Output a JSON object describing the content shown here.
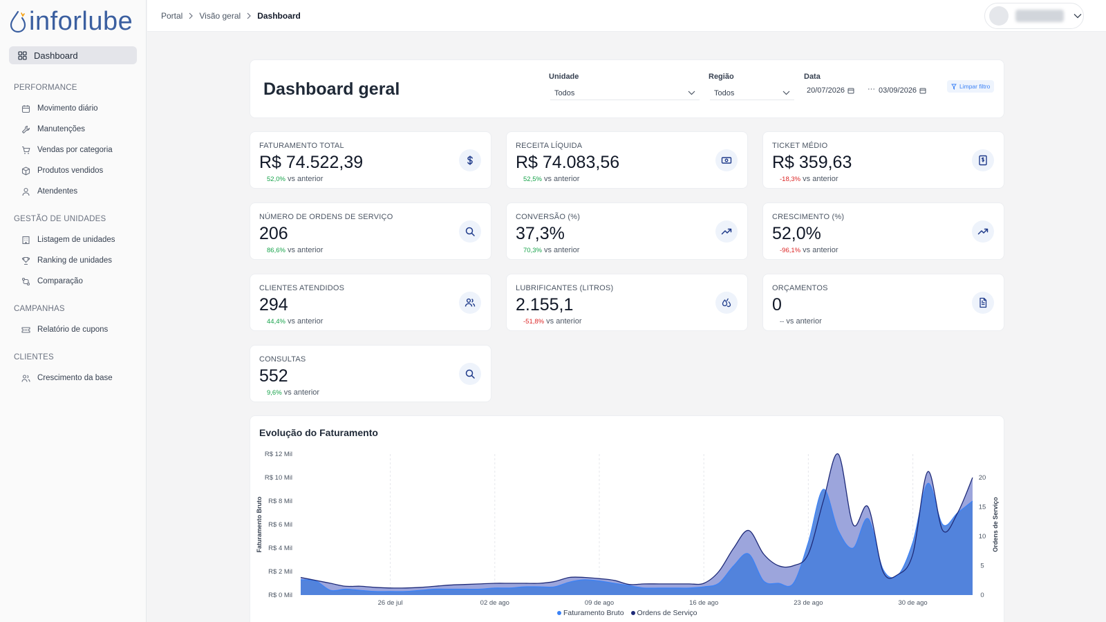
{
  "brand": {
    "name": "inforlube"
  },
  "sidebar": {
    "active": {
      "label": "Dashboard",
      "icon": "grid-icon"
    },
    "sections": [
      {
        "title": "PERFORMANCE",
        "items": [
          {
            "label": "Movimento diário",
            "icon": "calendar-icon"
          },
          {
            "label": "Manutenções",
            "icon": "wrench-icon"
          },
          {
            "label": "Vendas por categoria",
            "icon": "cart-icon"
          },
          {
            "label": "Produtos vendidos",
            "icon": "box-icon"
          },
          {
            "label": "Atendentes",
            "icon": "user-icon"
          }
        ]
      },
      {
        "title": "GESTÃO DE UNIDADES",
        "items": [
          {
            "label": "Listagem de unidades",
            "icon": "building-icon"
          },
          {
            "label": "Ranking de unidades",
            "icon": "trophy-icon"
          },
          {
            "label": "Comparação",
            "icon": "compare-icon"
          }
        ]
      },
      {
        "title": "CAMPANHAS",
        "items": [
          {
            "label": "Relatório de cupons",
            "icon": "ticket-icon"
          }
        ]
      },
      {
        "title": "CLIENTES",
        "items": [
          {
            "label": "Crescimento da base",
            "icon": "users-icon"
          }
        ]
      }
    ]
  },
  "breadcrumb": {
    "items": [
      "Portal",
      "Visão geral"
    ],
    "current": "Dashboard"
  },
  "header": {
    "title": "Dashboard geral",
    "filters": {
      "unidade": {
        "label": "Unidade",
        "value": "Todos"
      },
      "regiao": {
        "label": "Região",
        "value": "Todos"
      },
      "data": {
        "label": "Data",
        "start": "20/07/2026",
        "end": "03/09/2026"
      },
      "clear_label": "Limpar filtro"
    }
  },
  "kpis": [
    {
      "title": "FATURAMENTO TOTAL",
      "value": "R$ 74.522,39",
      "delta": "52,0%",
      "delta_dir": "up",
      "suffix": "vs anterior",
      "icon": "dollar-icon"
    },
    {
      "title": "RECEITA LÍQUIDA",
      "value": "R$ 74.083,56",
      "delta": "52,5%",
      "delta_dir": "up",
      "suffix": "vs anterior",
      "icon": "banknote-icon"
    },
    {
      "title": "TICKET MÉDIO",
      "value": "R$ 359,63",
      "delta": "-18,3%",
      "delta_dir": "down",
      "suffix": "vs anterior",
      "icon": "receipt-icon"
    },
    {
      "title": "NÚMERO DE ORDENS DE SERVIÇO",
      "value": "206",
      "delta": "86,6%",
      "delta_dir": "up",
      "suffix": "vs anterior",
      "icon": "search-icon"
    },
    {
      "title": "CONVERSÃO (%)",
      "value": "37,3%",
      "delta": "70,3%",
      "delta_dir": "up",
      "suffix": "vs anterior",
      "icon": "trending-up-icon"
    },
    {
      "title": "CRESCIMENTO (%)",
      "value": "52,0%",
      "delta": "-96,1%",
      "delta_dir": "down",
      "suffix": "vs anterior",
      "icon": "trending-up-icon"
    },
    {
      "title": "CLIENTES ATENDIDOS",
      "value": "294",
      "delta": "44,4%",
      "delta_dir": "up",
      "suffix": "vs anterior",
      "icon": "users-icon"
    },
    {
      "title": "LUBRIFICANTES (LITROS)",
      "value": "2.155,1",
      "delta": "-51,8%",
      "delta_dir": "down",
      "suffix": "vs anterior",
      "icon": "droplets-icon"
    },
    {
      "title": "ORÇAMENTOS",
      "value": "0",
      "delta": "--",
      "delta_dir": "neutral",
      "suffix": "vs anterior",
      "icon": "document-icon"
    },
    {
      "title": "CONSULTAS",
      "value": "552",
      "delta": "9,6%",
      "delta_dir": "up",
      "suffix": "vs anterior",
      "icon": "search-icon"
    }
  ],
  "chart": {
    "title": "Evolução do Faturamento",
    "colors": {
      "faturamento": "#4a7fdb",
      "ordens": "#8b95d6",
      "ordens_line": "#1e2a78",
      "faturamento_line": "#3b82f6"
    }
  },
  "chart_data": {
    "type": "area",
    "title": "Evolução do Faturamento",
    "ylabel": "Faturamento Bruto",
    "y2label": "Ordens de Serviço",
    "y_ticks": [
      "R$ 0 Mil",
      "R$ 2 Mil",
      "R$ 4 Mil",
      "R$ 6 Mil",
      "R$ 8 Mil",
      "R$ 10 Mil",
      "R$ 12 Mil"
    ],
    "y2_ticks": [
      "0",
      "5",
      "10",
      "15",
      "20"
    ],
    "ylim": [
      0,
      12
    ],
    "y2lim": [
      0,
      24
    ],
    "x_ticks": [
      {
        "label": "26 de jul",
        "day": 6
      },
      {
        "label": "02 de ago",
        "day": 13
      },
      {
        "label": "09 de ago",
        "day": 20
      },
      {
        "label": "16 de ago",
        "day": 27
      },
      {
        "label": "23 de ago",
        "day": 34
      },
      {
        "label": "30 de ago",
        "day": 41
      }
    ],
    "x_range": [
      0,
      45
    ],
    "series": [
      {
        "name": "Faturamento Bruto",
        "axis": "left",
        "values": [
          1.3,
          1.2,
          0.4,
          0.5,
          0.4,
          0.3,
          0.3,
          0.3,
          0.4,
          0.5,
          0.5,
          0.5,
          0.5,
          0.6,
          0.6,
          0.7,
          0.7,
          0.7,
          1.1,
          1.3,
          1.2,
          1.0,
          0.8,
          0.6,
          0.6,
          0.6,
          0.6,
          0.7,
          1.0,
          2.5,
          3.5,
          1.2,
          1.0,
          1.0,
          4.5,
          9.0,
          5.5,
          4.0,
          6.5,
          2.2,
          1.7,
          4.5,
          9.5,
          6.0,
          7.0,
          8.0
        ]
      },
      {
        "name": "Ordens de Serviço",
        "axis": "right",
        "values": [
          3.0,
          2.5,
          2.0,
          1.5,
          1.5,
          1.3,
          1.2,
          1.2,
          1.3,
          1.5,
          1.7,
          1.8,
          1.9,
          2.0,
          2.0,
          2.0,
          2.0,
          2.3,
          3.0,
          3.0,
          2.8,
          2.5,
          1.8,
          1.9,
          1.9,
          1.9,
          1.9,
          2.0,
          4.0,
          8.0,
          11.0,
          7.0,
          5.0,
          5.0,
          7.0,
          16.0,
          24.0,
          12.0,
          15.0,
          4.0,
          3.5,
          7.0,
          21.0,
          11.0,
          14.0,
          20.0
        ]
      }
    ],
    "grid": true,
    "legend": "bottom"
  }
}
